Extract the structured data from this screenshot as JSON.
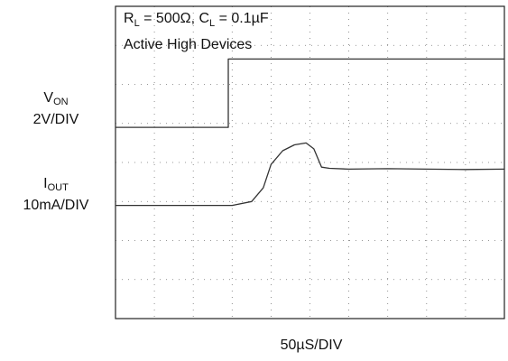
{
  "chart_data": {
    "type": "line",
    "annotations": {
      "line1": {
        "r": "R",
        "r_sub": "L",
        "r_val": " = 500Ω, C",
        "c_sub": "L",
        "c_val": " = 0.1µF"
      },
      "line2": "Active High Devices"
    },
    "xlabel": "50µS/DIV",
    "grid": true,
    "divisions": {
      "x": 10,
      "y": 8
    },
    "y_range_div": [
      0,
      8
    ],
    "x_range_div": [
      0,
      10
    ],
    "channels": [
      {
        "label": "V",
        "label_sub": "ON",
        "scale": "2V/DIV"
      },
      {
        "label": "I",
        "label_sub": "OUT",
        "scale": "10mA/DIV"
      }
    ],
    "series": [
      {
        "x": [
          0,
          2.9,
          2.9,
          10
        ],
        "y": [
          4.9,
          4.9,
          6.65,
          6.65
        ]
      },
      {
        "x": [
          0,
          3.0,
          3.5,
          3.8,
          4.0,
          4.3,
          4.6,
          4.9,
          5.1,
          5.3,
          5.5,
          6.0,
          7.0,
          8.0,
          9.0,
          10.0
        ],
        "y": [
          2.9,
          2.9,
          3.0,
          3.35,
          3.95,
          4.3,
          4.45,
          4.5,
          4.35,
          3.88,
          3.85,
          3.83,
          3.84,
          3.83,
          3.82,
          3.83
        ]
      }
    ]
  }
}
